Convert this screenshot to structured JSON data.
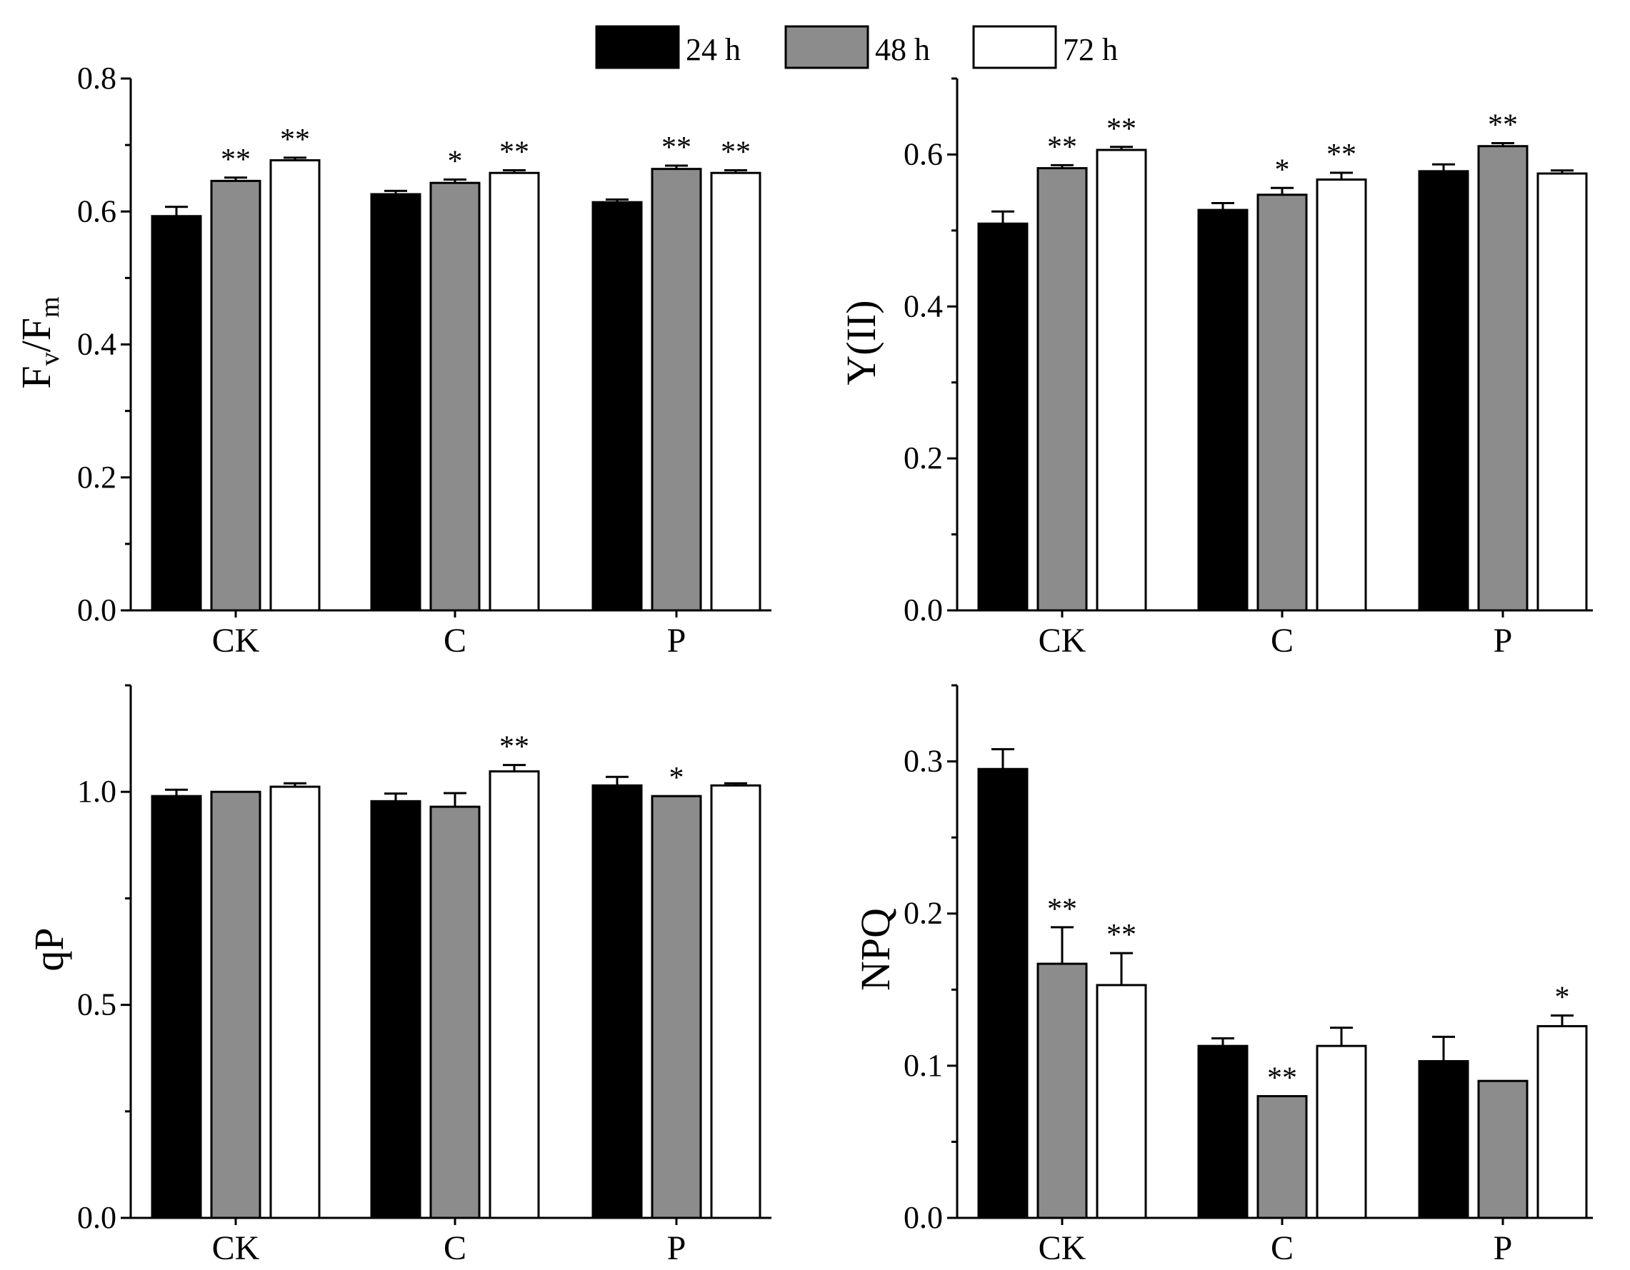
{
  "legend": {
    "items": [
      {
        "label": "24 h",
        "color": "#000000"
      },
      {
        "label": "48 h",
        "color": "#8c8c8c"
      },
      {
        "label": "72 h",
        "color": "#ffffff"
      }
    ]
  },
  "chart_data": [
    {
      "type": "bar",
      "ylabel": "Fv/Fm",
      "ylabel_parts": {
        "main1": "F",
        "sub1": "v",
        "main2": "/F",
        "sub2": "m"
      },
      "categories": [
        "CK",
        "C",
        "P"
      ],
      "ylim": [
        0,
        0.8
      ],
      "yticks": [
        "0.0",
        "0.2",
        "0.4",
        "0.6",
        "0.8"
      ],
      "ytick_values": [
        0,
        0.2,
        0.4,
        0.6,
        0.8
      ],
      "series": [
        {
          "name": "24 h",
          "values": [
            0.593,
            0.626,
            0.614
          ],
          "errors": [
            0.014,
            0.005,
            0.004
          ],
          "sig": [
            "",
            "",
            ""
          ]
        },
        {
          "name": "48 h",
          "values": [
            0.646,
            0.643,
            0.664
          ],
          "errors": [
            0.005,
            0.005,
            0.005
          ],
          "sig": [
            "**",
            "*",
            "**"
          ]
        },
        {
          "name": "72 h",
          "values": [
            0.677,
            0.658,
            0.658
          ],
          "errors": [
            0.004,
            0.004,
            0.004
          ],
          "sig": [
            "**",
            "**",
            "**"
          ]
        }
      ]
    },
    {
      "type": "bar",
      "ylabel": "Y(II)",
      "categories": [
        "CK",
        "C",
        "P"
      ],
      "ylim": [
        0,
        0.7
      ],
      "yticks": [
        "0.0",
        "0.2",
        "0.4",
        "0.6"
      ],
      "ytick_values": [
        0,
        0.2,
        0.4,
        0.6
      ],
      "series": [
        {
          "name": "24 h",
          "values": [
            0.509,
            0.527,
            0.578
          ],
          "errors": [
            0.016,
            0.009,
            0.009
          ],
          "sig": [
            "",
            "",
            ""
          ]
        },
        {
          "name": "48 h",
          "values": [
            0.582,
            0.547,
            0.611
          ],
          "errors": [
            0.004,
            0.009,
            0.004
          ],
          "sig": [
            "**",
            "*",
            "**"
          ]
        },
        {
          "name": "72 h",
          "values": [
            0.606,
            0.567,
            0.575
          ],
          "errors": [
            0.004,
            0.009,
            0.004
          ],
          "sig": [
            "**",
            "**",
            ""
          ]
        }
      ]
    },
    {
      "type": "bar",
      "ylabel": "qP",
      "categories": [
        "CK",
        "C",
        "P"
      ],
      "ylim": [
        0,
        1.25
      ],
      "yticks": [
        "0.0",
        "0.5",
        "1.0"
      ],
      "ytick_values": [
        0,
        0.5,
        1.0
      ],
      "series": [
        {
          "name": "24 h",
          "values": [
            0.99,
            0.978,
            1.015
          ],
          "errors": [
            0.015,
            0.018,
            0.02
          ],
          "sig": [
            "",
            "",
            ""
          ]
        },
        {
          "name": "48 h",
          "values": [
            1.0,
            0.965,
            0.99
          ],
          "errors": [
            0.0,
            0.032,
            0.0
          ],
          "sig": [
            "",
            "",
            "*"
          ]
        },
        {
          "name": "72 h",
          "values": [
            1.012,
            1.048,
            1.015
          ],
          "errors": [
            0.008,
            0.015,
            0.005
          ],
          "sig": [
            "",
            "**",
            ""
          ]
        }
      ]
    },
    {
      "type": "bar",
      "ylabel": "NPQ",
      "categories": [
        "CK",
        "C",
        "P"
      ],
      "ylim": [
        0,
        0.35
      ],
      "yticks": [
        "0.0",
        "0.1",
        "0.2",
        "0.3"
      ],
      "ytick_values": [
        0,
        0.1,
        0.2,
        0.3
      ],
      "series": [
        {
          "name": "24 h",
          "values": [
            0.295,
            0.113,
            0.103
          ],
          "errors": [
            0.013,
            0.005,
            0.016
          ],
          "sig": [
            "",
            "",
            ""
          ]
        },
        {
          "name": "48 h",
          "values": [
            0.167,
            0.08,
            0.09
          ],
          "errors": [
            0.024,
            0.0,
            0.0
          ],
          "sig": [
            "**",
            "**",
            ""
          ]
        },
        {
          "name": "72 h",
          "values": [
            0.153,
            0.113,
            0.126
          ],
          "errors": [
            0.021,
            0.012,
            0.007
          ],
          "sig": [
            "**",
            "",
            "*"
          ]
        }
      ]
    }
  ]
}
